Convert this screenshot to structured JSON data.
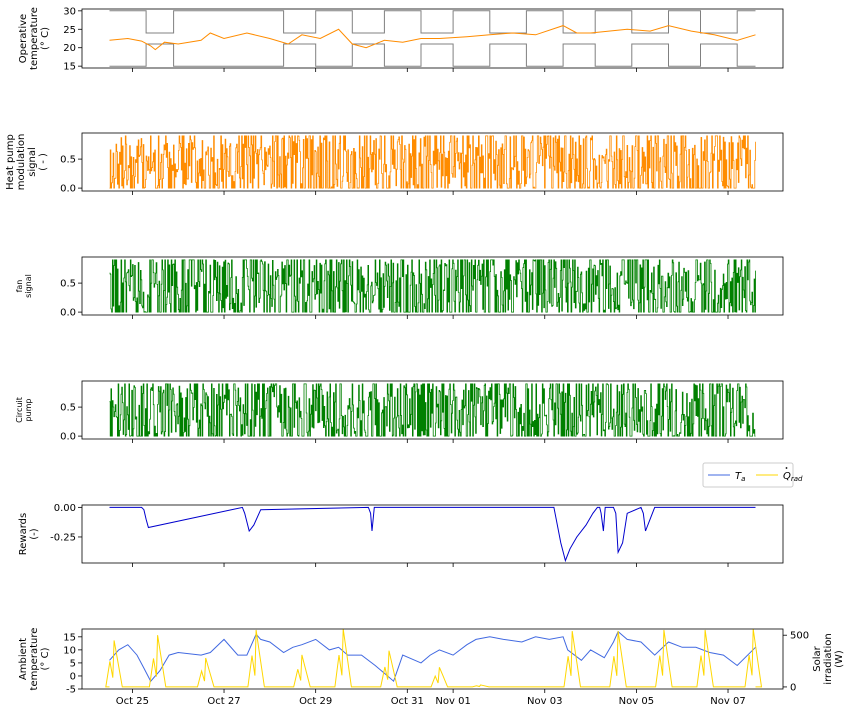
{
  "chart_data": [
    {
      "type": "line",
      "ylabel": [
        "Operative",
        "temperature",
        "(° C)"
      ],
      "ylim": [
        14.5,
        30.5
      ],
      "yticks": [
        15,
        20,
        25,
        30
      ],
      "series": [
        {
          "name": "",
          "color": "#808080",
          "role": "upper-comfort-bound",
          "x": [
            0,
            0.8,
            0.8,
            1.4,
            1.4,
            3.8,
            3.8,
            4.5,
            4.5,
            5.3,
            5.3,
            6,
            6,
            6.8,
            6.8,
            7.5,
            7.5,
            8.3,
            8.3,
            9.1,
            9.1,
            9.9,
            9.9,
            10.6,
            10.6,
            11.4,
            11.4,
            12.2,
            12.2,
            12.9,
            12.9,
            13.7,
            13.7,
            14.1
          ],
          "y": [
            30,
            30,
            24,
            24,
            30,
            30,
            24,
            24,
            30,
            30,
            24,
            24,
            30,
            30,
            24,
            24,
            30,
            30,
            24,
            24,
            30,
            30,
            24,
            24,
            30,
            30,
            24,
            24,
            30,
            30,
            24,
            24,
            30,
            30
          ]
        },
        {
          "name": "",
          "color": "#808080",
          "role": "lower-comfort-bound",
          "x": [
            0,
            0.8,
            0.8,
            1.4,
            1.4,
            3.8,
            3.8,
            4.5,
            4.5,
            5.3,
            5.3,
            6,
            6,
            6.8,
            6.8,
            7.5,
            7.5,
            8.3,
            8.3,
            9.1,
            9.1,
            9.9,
            9.9,
            10.6,
            10.6,
            11.4,
            11.4,
            12.2,
            12.2,
            12.9,
            12.9,
            13.7,
            13.7,
            14.1
          ],
          "y": [
            15,
            15,
            21,
            21,
            15,
            15,
            21,
            21,
            15,
            15,
            21,
            21,
            15,
            15,
            21,
            21,
            15,
            15,
            21,
            21,
            15,
            15,
            21,
            21,
            15,
            15,
            21,
            21,
            15,
            15,
            21,
            21,
            15,
            15
          ]
        },
        {
          "name": "",
          "color": "#ff8c00",
          "role": "operative-temperature",
          "x": [
            0,
            0.4,
            0.7,
            0.9,
            1.0,
            1.2,
            1.5,
            2.0,
            2.2,
            2.5,
            3.0,
            3.5,
            3.9,
            4.2,
            4.6,
            5.0,
            5.3,
            5.6,
            6.0,
            6.4,
            6.8,
            7.2,
            7.8,
            8.3,
            8.8,
            9.3,
            9.9,
            10.2,
            10.5,
            10.9,
            11.3,
            11.8,
            12.2,
            12.7,
            13.2,
            13.7,
            14.1
          ],
          "y": [
            22,
            22.5,
            21.8,
            20.5,
            19.5,
            21.5,
            21,
            22,
            24,
            22.5,
            24,
            22.5,
            21,
            23.5,
            22.5,
            25,
            21,
            20,
            22,
            21.5,
            22.5,
            22.5,
            23,
            23.5,
            24,
            23.5,
            26,
            24,
            24,
            24.5,
            25,
            24.5,
            26,
            24.5,
            23.5,
            22,
            23.5
          ]
        }
      ]
    },
    {
      "type": "line",
      "ylabel": [
        "Heat pump",
        "modulation",
        "signal",
        "( - )"
      ],
      "ylim": [
        -0.05,
        0.95
      ],
      "yticks": [
        0.0,
        0.5
      ],
      "series": [
        {
          "name": "",
          "color": "#ff8c00",
          "pattern": "random-switching",
          "min": 0.0,
          "max": 0.9,
          "x_range": [
            0,
            14.1
          ]
        }
      ]
    },
    {
      "type": "line",
      "ylabel": [
        "fan",
        "signal"
      ],
      "ylim": [
        -0.05,
        0.95
      ],
      "yticks": [
        0.0,
        0.5
      ],
      "series": [
        {
          "name": "",
          "color": "#008000",
          "pattern": "random-switching",
          "min": 0.0,
          "max": 0.9,
          "x_range": [
            0,
            14.1
          ]
        }
      ]
    },
    {
      "type": "line",
      "ylabel": [
        "Circuit",
        "pump"
      ],
      "ylim": [
        -0.05,
        0.95
      ],
      "yticks": [
        0.0,
        0.5
      ],
      "series": [
        {
          "name": "",
          "color": "#008000",
          "pattern": "random-switching",
          "min": 0.0,
          "max": 0.9,
          "x_range": [
            0,
            14.1
          ]
        }
      ]
    },
    {
      "type": "line",
      "ylabel": [
        "Rewards",
        "(-)"
      ],
      "ylim": [
        -0.47,
        0.02
      ],
      "yticks": [
        0.0,
        -0.25
      ],
      "legend": {
        "placement": "top-right",
        "entries": [
          {
            "label": "T_a",
            "color": "#4169e1"
          },
          {
            "label": "Q̇_rad",
            "color": "#ffd700"
          }
        ]
      },
      "series": [
        {
          "name": "",
          "color": "#0000cd",
          "x": [
            0,
            0.7,
            0.75,
            0.8,
            0.85,
            2.9,
            2.95,
            3.05,
            3.15,
            3.3,
            5.65,
            5.7,
            5.73,
            5.78,
            9.7,
            9.75,
            9.85,
            9.95,
            10.05,
            10.2,
            10.4,
            10.55,
            10.65,
            10.7,
            10.73,
            10.78,
            10.82,
            11.0,
            11.05,
            11.1,
            11.2,
            11.3,
            11.6,
            11.65,
            11.7,
            11.8,
            11.9,
            14.1
          ],
          "y": [
            0,
            0,
            -0.02,
            -0.1,
            -0.17,
            0,
            -0.05,
            -0.2,
            -0.15,
            -0.02,
            0,
            -0.05,
            -0.2,
            0,
            0,
            -0.1,
            -0.3,
            -0.45,
            -0.35,
            -0.25,
            -0.15,
            -0.05,
            0,
            0,
            -0.05,
            -0.2,
            0,
            0,
            -0.05,
            -0.38,
            -0.3,
            -0.05,
            0,
            -0.05,
            -0.2,
            -0.1,
            0,
            0
          ]
        }
      ]
    },
    {
      "type": "line",
      "ylabel": [
        "Ambient",
        "temperature",
        "(° C)"
      ],
      "y2label": [
        "Solar",
        "irradiation",
        "(W)"
      ],
      "ylim": [
        -5,
        18
      ],
      "yticks": [
        -5,
        0,
        5,
        10,
        15
      ],
      "y2lim": [
        -20,
        560
      ],
      "y2ticks": [
        0,
        500
      ],
      "xticks": [
        {
          "x": 0.5,
          "label": "Oct 25"
        },
        {
          "x": 2.5,
          "label": "Oct 27"
        },
        {
          "x": 4.5,
          "label": "Oct 29"
        },
        {
          "x": 6.5,
          "label": "Oct 31"
        },
        {
          "x": 7.5,
          "label": "Nov 01"
        },
        {
          "x": 9.5,
          "label": "Nov 03"
        },
        {
          "x": 11.5,
          "label": "Nov 05"
        },
        {
          "x": 13.5,
          "label": "Nov 07"
        }
      ],
      "xlim": [
        -0.6,
        14.7
      ],
      "series": [
        {
          "name": "T_a",
          "color": "#4169e1",
          "axis": "left",
          "x": [
            0,
            0.2,
            0.4,
            0.6,
            0.75,
            0.9,
            1.1,
            1.3,
            1.5,
            2,
            2.2,
            2.5,
            2.8,
            3,
            3.2,
            3.3,
            3.5,
            3.8,
            4,
            4.2,
            4.5,
            4.8,
            5,
            5.2,
            5.5,
            5.8,
            6,
            6.2,
            6.4,
            6.8,
            7,
            7.2,
            7.5,
            7.8,
            8,
            8.3,
            8.6,
            9,
            9.3,
            9.6,
            9.9,
            10,
            10.3,
            10.5,
            10.8,
            11,
            11.1,
            11.3,
            11.6,
            11.9,
            12.2,
            12.5,
            12.8,
            13.1,
            13.4,
            13.7,
            14.1
          ],
          "y": [
            6,
            10,
            12,
            8,
            3,
            -2,
            2,
            8,
            9,
            8,
            9,
            14,
            8,
            8,
            16,
            14,
            13,
            9,
            11,
            12,
            14,
            10,
            11,
            8,
            8,
            4,
            1,
            -2,
            8,
            5,
            8,
            10,
            8,
            12,
            14,
            15,
            14,
            13,
            15,
            14,
            15,
            10,
            6,
            10,
            7,
            13,
            17,
            14,
            13,
            8,
            13,
            11,
            11,
            9,
            8,
            4,
            11
          ]
        },
        {
          "name": "Q̇_rad",
          "color": "#ffd700",
          "axis": "right",
          "pattern": "daily-peaks",
          "peaks": [
            {
              "day_center": 0.1,
              "value": 450
            },
            {
              "day_center": 1.05,
              "value": 500
            },
            {
              "day_center": 2.1,
              "value": 280
            },
            {
              "day_center": 3.2,
              "value": 550
            },
            {
              "day_center": 4.2,
              "value": 310
            },
            {
              "day_center": 5.1,
              "value": 560
            },
            {
              "day_center": 6.1,
              "value": 350
            },
            {
              "day_center": 7.2,
              "value": 190
            },
            {
              "day_center": 8.1,
              "value": 20
            },
            {
              "day_center": 10.1,
              "value": 540
            },
            {
              "day_center": 11.1,
              "value": 540
            },
            {
              "day_center": 12.1,
              "value": 550
            },
            {
              "day_center": 13.0,
              "value": 550
            },
            {
              "day_center": 14.05,
              "value": 560
            }
          ]
        }
      ]
    }
  ],
  "legend_labels": {
    "t_a": "T",
    "t_a_sub": "a",
    "q_rad": "Q",
    "q_rad_sub": "rad"
  }
}
